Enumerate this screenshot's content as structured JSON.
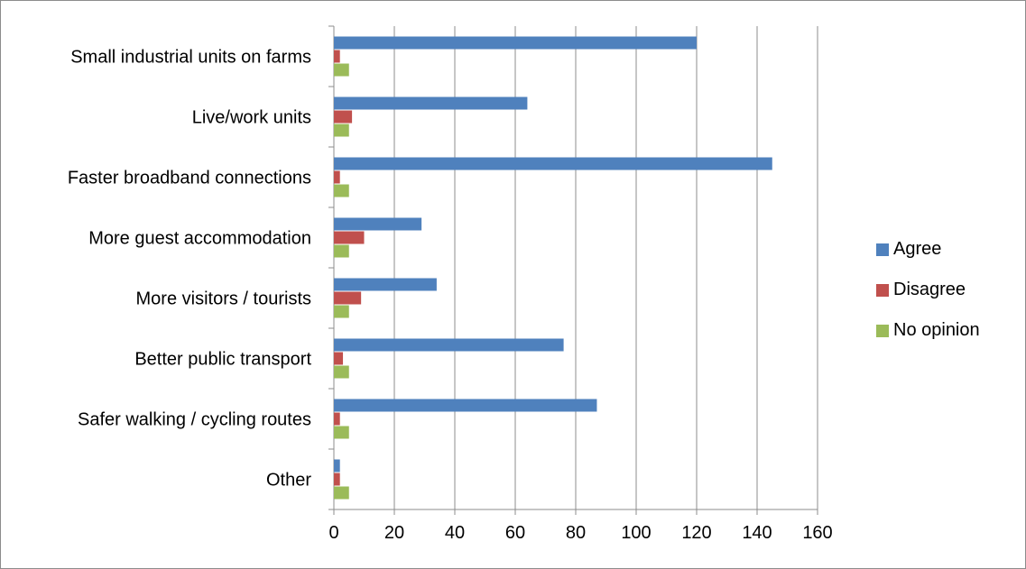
{
  "chart_data": {
    "type": "bar",
    "orientation": "horizontal",
    "categories": [
      "Small industrial units on farms",
      "Live/work units",
      "Faster broadband connections",
      "More guest accommodation",
      "More visitors / tourists",
      "Better public transport",
      "Safer walking / cycling routes",
      "Other"
    ],
    "series": [
      {
        "name": "Agree",
        "color": "#4F81BD",
        "values": [
          120,
          64,
          145,
          29,
          34,
          76,
          87,
          2
        ]
      },
      {
        "name": "Disagree",
        "color": "#C0504D",
        "values": [
          2,
          6,
          2,
          10,
          9,
          3,
          2,
          2
        ]
      },
      {
        "name": "No opinion",
        "color": "#9BBB59",
        "values": [
          5,
          5,
          5,
          5,
          5,
          5,
          5,
          5
        ]
      }
    ],
    "xlim": [
      0,
      160
    ],
    "x_ticks": [
      "0",
      "20",
      "40",
      "60",
      "80",
      "100",
      "120",
      "140",
      "160"
    ],
    "grid": "vertical",
    "legend_position": "right",
    "title": "",
    "xlabel": "",
    "ylabel": ""
  }
}
